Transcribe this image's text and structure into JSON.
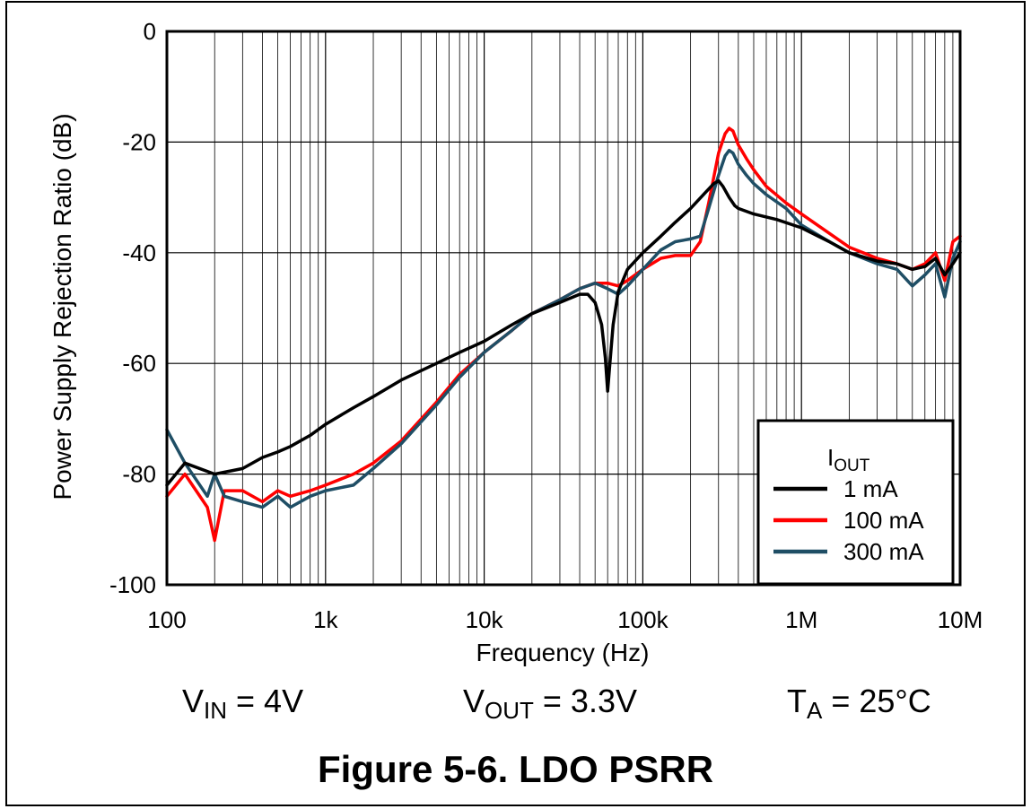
{
  "conditions": {
    "vin": {
      "sym": "V",
      "sub": "IN",
      "rest": " = 4V"
    },
    "vout": {
      "sym": "V",
      "sub": "OUT",
      "rest": " = 3.3V"
    },
    "ta": {
      "sym": "T",
      "sub": "A",
      "rest": " = 25°C"
    }
  },
  "caption": "Figure 5-6. LDO PSRR",
  "chart_data": {
    "type": "line",
    "xscale": "log",
    "xlabel": "Frequency (Hz)",
    "ylabel": "Power Supply Rejection Ratio (dB)",
    "xlim": [
      100,
      10000000
    ],
    "ylim": [
      -100,
      0
    ],
    "xticks": [
      100,
      1000,
      10000,
      100000,
      1000000,
      10000000
    ],
    "xtick_labels": [
      "100",
      "1k",
      "10k",
      "100k",
      "1M",
      "10M"
    ],
    "yticks": [
      0,
      -20,
      -40,
      -60,
      -80,
      -100
    ],
    "ytick_labels": [
      "0",
      "-20",
      "-40",
      "-60",
      "-80",
      "-100"
    ],
    "grid": true,
    "legend": {
      "title_main": "I",
      "title_sub": "OUT",
      "position": "bottom-right"
    },
    "series": [
      {
        "name": "1 mA",
        "color": "#000000",
        "x": [
          100,
          130,
          200,
          300,
          400,
          500,
          600,
          800,
          1000,
          1500,
          2000,
          3000,
          5000,
          7000,
          10000,
          15000,
          20000,
          30000,
          40000,
          45000,
          50000,
          55000,
          58000,
          60000,
          62000,
          65000,
          70000,
          80000,
          100000,
          130000,
          160000,
          200000,
          250000,
          280000,
          300000,
          320000,
          350000,
          380000,
          400000,
          500000,
          700000,
          1000000,
          1500000,
          2000000,
          3000000,
          4000000,
          5000000,
          6000000,
          7000000,
          8000000,
          9000000,
          10000000
        ],
        "y": [
          -82,
          -78,
          -80,
          -79,
          -77,
          -76,
          -75,
          -73,
          -71,
          -68,
          -66,
          -63,
          -60,
          -58,
          -56,
          -53,
          -51,
          -49,
          -47.5,
          -47.5,
          -49,
          -53,
          -59,
          -65,
          -60,
          -53,
          -47,
          -43,
          -40,
          -37,
          -34.5,
          -32,
          -29,
          -27.5,
          -27,
          -28,
          -30,
          -31.5,
          -32,
          -33,
          -34,
          -35.5,
          -38,
          -40,
          -41.5,
          -42,
          -43,
          -42.5,
          -41,
          -44,
          -42,
          -40
        ]
      },
      {
        "name": "100 mA",
        "color": "#ff0000",
        "x": [
          100,
          130,
          180,
          200,
          230,
          300,
          400,
          500,
          600,
          800,
          1000,
          1500,
          2000,
          3000,
          5000,
          7000,
          10000,
          15000,
          20000,
          30000,
          40000,
          50000,
          60000,
          70000,
          80000,
          100000,
          130000,
          160000,
          200000,
          230000,
          260000,
          300000,
          330000,
          350000,
          370000,
          400000,
          450000,
          500000,
          600000,
          800000,
          1000000,
          1500000,
          2000000,
          3000000,
          4000000,
          5000000,
          6000000,
          7000000,
          8000000,
          9000000,
          10000000
        ],
        "y": [
          -84,
          -80,
          -86,
          -92,
          -83,
          -83,
          -85,
          -83,
          -84,
          -83,
          -82,
          -80,
          -78,
          -74,
          -67,
          -62,
          -58,
          -54,
          -51,
          -48.5,
          -46.5,
          -45.5,
          -45.5,
          -46,
          -45,
          -43,
          -41,
          -40.5,
          -40.5,
          -38,
          -31,
          -22,
          -18.5,
          -17.5,
          -18,
          -20.5,
          -23,
          -25,
          -28,
          -31,
          -33,
          -36.5,
          -39,
          -41,
          -42,
          -43,
          -42,
          -40,
          -45,
          -38,
          -37
        ]
      },
      {
        "name": "300 mA",
        "color": "#1f4e65",
        "x": [
          100,
          130,
          180,
          200,
          230,
          300,
          400,
          500,
          600,
          800,
          1000,
          1500,
          2000,
          3000,
          5000,
          7000,
          10000,
          15000,
          20000,
          30000,
          40000,
          50000,
          60000,
          70000,
          80000,
          100000,
          130000,
          160000,
          200000,
          230000,
          260000,
          300000,
          330000,
          350000,
          370000,
          400000,
          450000,
          500000,
          600000,
          800000,
          1000000,
          1500000,
          2000000,
          3000000,
          4000000,
          5000000,
          6000000,
          7000000,
          8000000,
          9000000,
          10000000
        ],
        "y": [
          -72,
          -78,
          -84,
          -80,
          -84,
          -85,
          -86,
          -84,
          -86,
          -84,
          -83,
          -82,
          -79,
          -74.5,
          -67.5,
          -62.5,
          -58,
          -54,
          -51,
          -48.5,
          -46.5,
          -45.5,
          -46.5,
          -47.5,
          -46,
          -43,
          -39.5,
          -38,
          -37.5,
          -37,
          -32,
          -26,
          -22.5,
          -21.5,
          -22,
          -24,
          -26,
          -27.5,
          -29.5,
          -32,
          -35,
          -38,
          -40,
          -42,
          -43,
          -46,
          -44,
          -42,
          -48,
          -41,
          -38
        ]
      }
    ]
  }
}
